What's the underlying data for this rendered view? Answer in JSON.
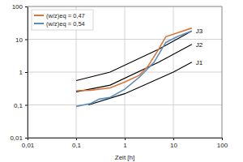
{
  "chart_data": {
    "type": "line",
    "x_label": "Zeit [h]",
    "log": true,
    "grid": true,
    "legend": "top-left",
    "xlim": [
      0.01,
      100
    ],
    "ylim": [
      0.01,
      100
    ],
    "xticks": [
      {
        "value": 0.01,
        "label": "0,01"
      },
      {
        "value": 0.1,
        "label": "0,1"
      },
      1,
      10,
      100
    ],
    "yticks": [
      {
        "value": 0.01,
        "label": "0,01"
      },
      {
        "value": 0.1,
        "label": "0,1"
      },
      1,
      10,
      100
    ],
    "series": [
      {
        "name": "(w/z)eq = 0,47",
        "color": "#d9763a",
        "x": [
          0.1,
          0.2,
          0.5,
          1,
          2,
          3,
          5,
          7,
          24
        ],
        "values": [
          0.27,
          0.28,
          0.33,
          0.5,
          0.8,
          1.5,
          5,
          12,
          22
        ]
      },
      {
        "name": "(w/z)eq = 0,54",
        "color": "#5b8db8",
        "x": [
          0.1,
          0.2,
          0.3,
          0.5,
          1,
          2,
          4,
          7,
          12,
          24
        ],
        "values": [
          0.09,
          0.11,
          0.15,
          0.17,
          0.3,
          0.7,
          2,
          8,
          12,
          18
        ]
      }
    ],
    "limit_lines": [
      {
        "label": "J3",
        "color": "#000000",
        "x": [
          0.1,
          0.5,
          5,
          24
        ],
        "values": [
          0.55,
          1.0,
          5,
          18
        ]
      },
      {
        "label": "J2",
        "color": "#000000",
        "x": [
          0.1,
          0.5,
          5,
          24
        ],
        "values": [
          0.25,
          0.4,
          2,
          7
        ]
      },
      {
        "label": "J1",
        "color": "#000000",
        "x": [
          0.18,
          1,
          10,
          24
        ],
        "values": [
          0.1,
          0.22,
          1.0,
          2
        ]
      }
    ]
  }
}
